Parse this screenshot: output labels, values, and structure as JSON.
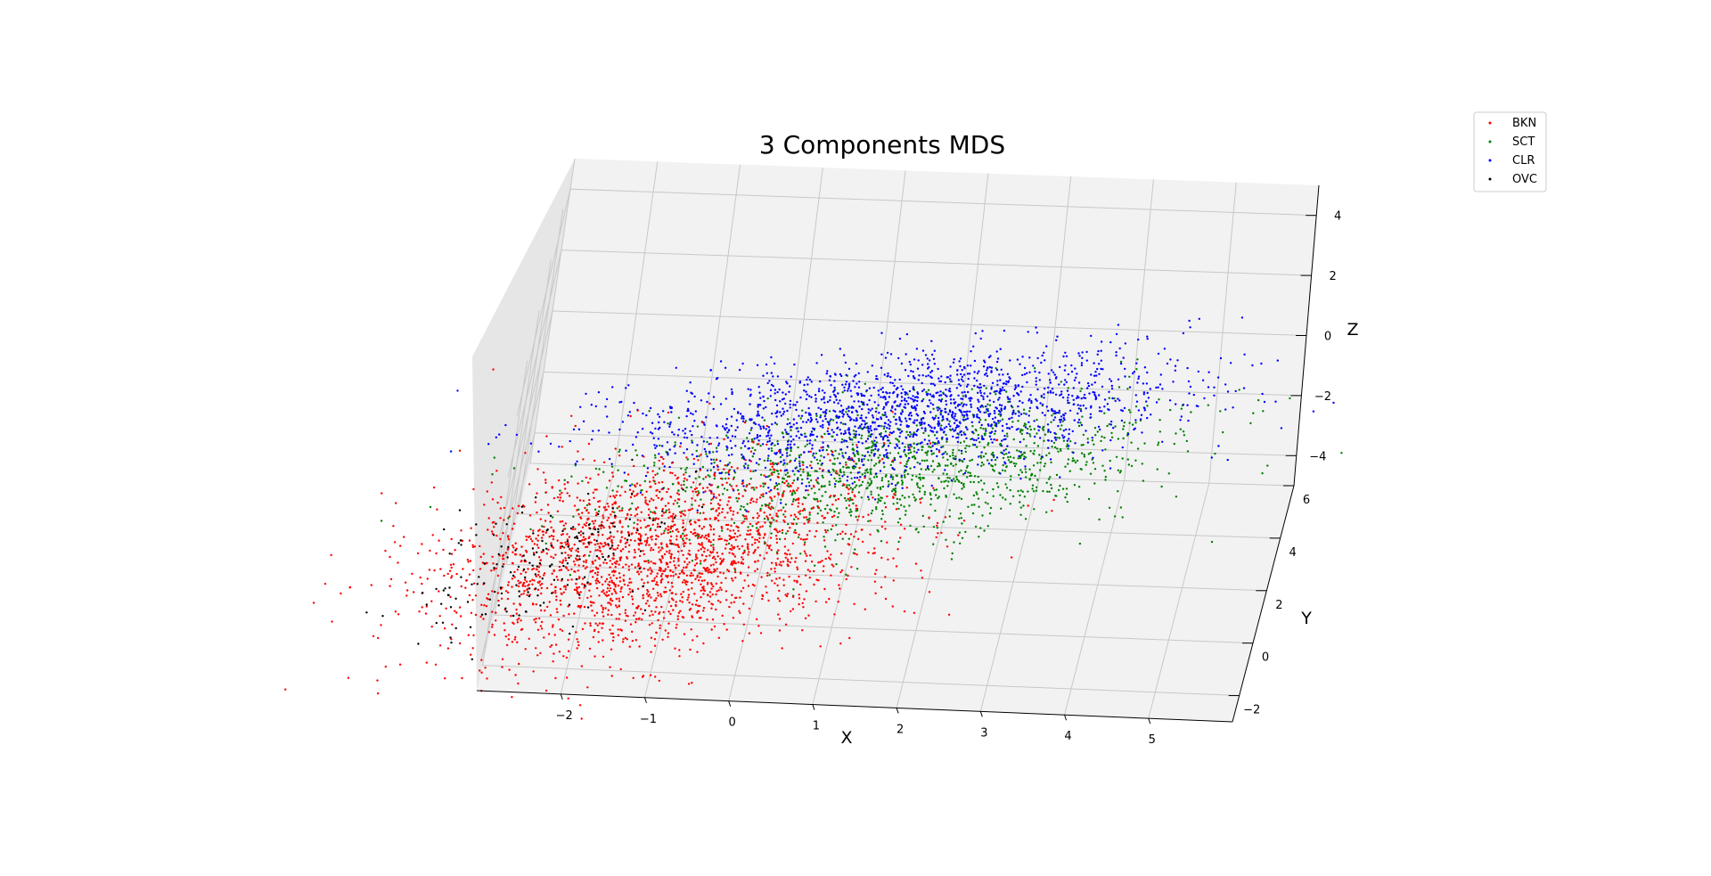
{
  "chart_data": {
    "type": "scatter",
    "projection": "3d",
    "title": "3 Components MDS",
    "xlabel": "X",
    "ylabel": "Y",
    "zlabel": "Z",
    "xlim": [
      -3,
      6
    ],
    "ylim": [
      -3,
      6
    ],
    "zlim": [
      -5,
      5
    ],
    "xticks": [
      -2,
      -1,
      0,
      1,
      2,
      3,
      4,
      5
    ],
    "yticks": [
      -2,
      0,
      2,
      4,
      6
    ],
    "zticks": [
      -4,
      -2,
      0,
      2,
      4
    ],
    "grid": true,
    "legend_position": "top-right",
    "series": [
      {
        "name": "BKN",
        "color": "#ff0000",
        "approx_points": 5000,
        "center": [
          -1.2,
          -1.0,
          -2.0
        ],
        "spread": [
          1.3,
          1.3,
          1.1
        ]
      },
      {
        "name": "SCT",
        "color": "#008000",
        "approx_points": 3000,
        "center": [
          1.5,
          1.5,
          -1.0
        ],
        "spread": [
          1.6,
          0.9,
          0.8
        ]
      },
      {
        "name": "CLR",
        "color": "#0000ff",
        "approx_points": 4000,
        "center": [
          1.5,
          2.5,
          0.0
        ],
        "spread": [
          1.6,
          0.8,
          0.7
        ]
      },
      {
        "name": "OVC",
        "color": "#000000",
        "approx_points": 400,
        "center": [
          -2.5,
          -1.5,
          -2.0
        ],
        "spread": [
          0.7,
          0.8,
          0.8
        ]
      }
    ]
  }
}
